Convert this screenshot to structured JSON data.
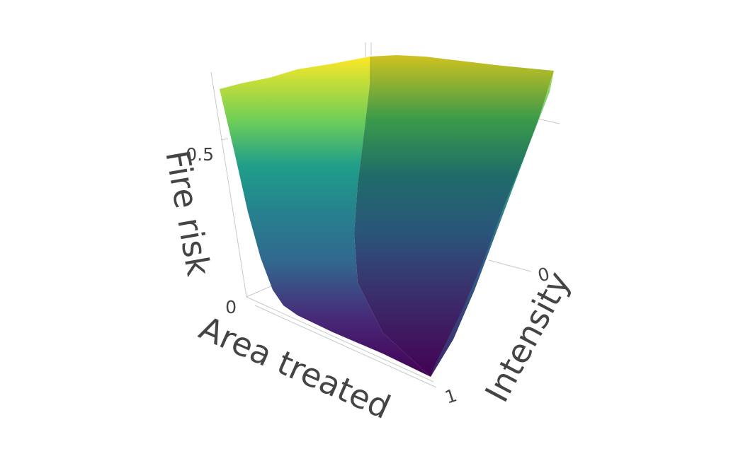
{
  "chart_data": {
    "type": "surface",
    "title": "",
    "axes": {
      "x": {
        "label": "Area treated",
        "range": [
          0,
          1
        ],
        "ticks": [
          {
            "value": 1,
            "label": "1"
          }
        ]
      },
      "y": {
        "label": "Intensity",
        "range": [
          0,
          1
        ],
        "ticks": [
          {
            "value": 0,
            "label": "0"
          }
        ]
      },
      "z": {
        "label": "Fire risk",
        "range": [
          0,
          0.75
        ],
        "ticks": [
          {
            "value": 0,
            "label": "0"
          },
          {
            "value": 0.5,
            "label": "0.5"
          }
        ]
      }
    },
    "colorscale": "viridis",
    "colors": [
      "#440154",
      "#482878",
      "#3e4989",
      "#31688e",
      "#26828e",
      "#1f9e89",
      "#35b779",
      "#6ece58",
      "#b5de2b",
      "#fde725"
    ],
    "surface_description": "Fire risk is lowest at full area treated with full intensity and rises toward untreated corners.",
    "grid": true,
    "legend": "none"
  }
}
